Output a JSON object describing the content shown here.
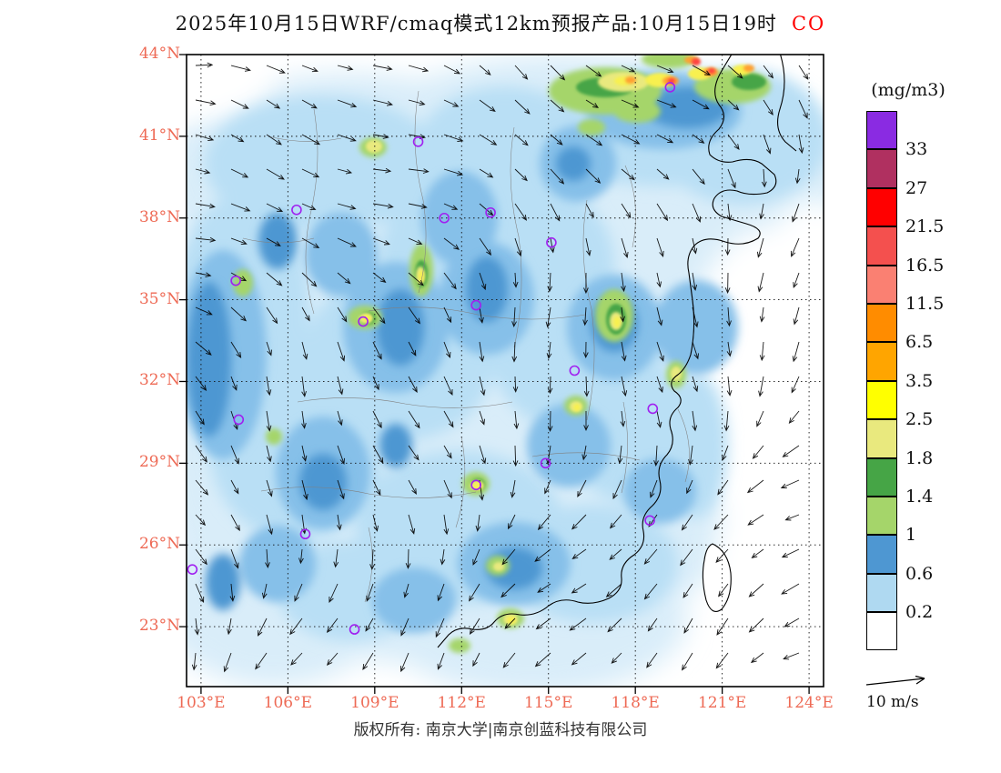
{
  "title": {
    "text": "2025年10月15日WRF/cmaq模式12km预报产品:10月15日19时",
    "species": "CO"
  },
  "axes": {
    "lat_labels": [
      "44°N",
      "41°N",
      "38°N",
      "35°N",
      "32°N",
      "29°N",
      "26°N",
      "23°N"
    ],
    "lon_labels": [
      "103°E",
      "106°E",
      "109°E",
      "112°E",
      "115°E",
      "118°E",
      "121°E",
      "124°E"
    ],
    "label_color": "#ee6a55"
  },
  "colorbar": {
    "title": "(mg/m3)",
    "cells": [
      {
        "color": "#8A2BE2",
        "label": "33"
      },
      {
        "color": "#B03060",
        "label": "27"
      },
      {
        "color": "#FF0000",
        "label": "21.5"
      },
      {
        "color": "#F4504E",
        "label": "16.5"
      },
      {
        "color": "#FA8072",
        "label": "11.5"
      },
      {
        "color": "#FF8C00",
        "label": "6.5"
      },
      {
        "color": "#FFA500",
        "label": "3.5"
      },
      {
        "color": "#FFFF00",
        "label": "2.5"
      },
      {
        "color": "#E9E97E",
        "label": "1.8"
      },
      {
        "color": "#46A546",
        "label": "1.4"
      },
      {
        "color": "#A5D56A",
        "label": "1"
      },
      {
        "color": "#4E97D2",
        "label": "0.6"
      },
      {
        "color": "#AFD9F1",
        "label": "0.2"
      },
      {
        "color": "#FFFFFF",
        "label": ""
      }
    ]
  },
  "wind_legend": {
    "label": "10 m/s"
  },
  "footer": {
    "text": "版权所有: 南京大学|南京创蓝科技有限公司"
  },
  "chart_data": {
    "type": "heatmap",
    "variable": "CO",
    "units": "mg/m3",
    "model": "WRF/cmaq 12km forecast product",
    "run_date": "2025年10月15日",
    "valid_time": "10月15日19时",
    "lon_range": [
      102.5,
      124.5
    ],
    "lat_range": [
      20.8,
      44
    ],
    "lon_ticks": [
      103,
      106,
      109,
      112,
      115,
      118,
      121,
      124
    ],
    "lat_ticks": [
      44,
      41,
      38,
      35,
      32,
      29,
      26,
      23
    ],
    "levels_mg_m3": [
      0.2,
      0.6,
      1,
      1.4,
      1.8,
      2.5,
      3.5,
      6.5,
      11.5,
      16.5,
      21.5,
      27,
      33
    ],
    "level_colors_low_to_high": [
      "#FFFFFF",
      "#AFD9F1",
      "#4E97D2",
      "#A5D56A",
      "#46A546",
      "#E9E97E",
      "#FFFF00",
      "#FFA500",
      "#FF8C00",
      "#FA8072",
      "#F4504E",
      "#FF0000",
      "#B03060",
      "#8A2BE2"
    ],
    "wind_reference_ms": 10,
    "background_field": "CO mostly 0.2-1 mg/m3 (pale blue) over land; below 0.2 (white) over southeast ocean; deeper blue (0.6-1.4) bands along western edge and scattered patches",
    "hotspots": [
      {
        "lon": 119.3,
        "lat": 43.6,
        "peak": 21.5,
        "desc": "strong NE plume band with orange/red cores"
      },
      {
        "lon": 117.5,
        "lat": 43.0,
        "peak": 3.5
      },
      {
        "lon": 109.0,
        "lat": 40.7,
        "peak": 2.5
      },
      {
        "lon": 110.6,
        "lat": 36.2,
        "peak": 2.5
      },
      {
        "lon": 108.7,
        "lat": 34.3,
        "peak": 2.5
      },
      {
        "lon": 117.3,
        "lat": 34.4,
        "peak": 3.5
      },
      {
        "lon": 116.0,
        "lat": 31.1,
        "peak": 2.5
      },
      {
        "lon": 119.4,
        "lat": 32.3,
        "peak": 2.5
      },
      {
        "lon": 112.5,
        "lat": 28.2,
        "peak": 2.5
      },
      {
        "lon": 113.3,
        "lat": 23.2,
        "peak": 2.5
      },
      {
        "lon": 104.4,
        "lat": 35.6,
        "peak": 1.8
      },
      {
        "lon": 113.7,
        "lat": 25.2,
        "peak": 1.8
      }
    ],
    "station_markers_lon_lat": [
      [
        119.2,
        42.8
      ],
      [
        110.5,
        40.8
      ],
      [
        106.3,
        38.3
      ],
      [
        111.4,
        38.0
      ],
      [
        113.0,
        38.2
      ],
      [
        115.1,
        37.1
      ],
      [
        104.2,
        35.7
      ],
      [
        108.6,
        34.2
      ],
      [
        112.5,
        34.8
      ],
      [
        115.9,
        32.4
      ],
      [
        118.6,
        31.0
      ],
      [
        104.3,
        30.6
      ],
      [
        114.9,
        29.0
      ],
      [
        106.6,
        26.4
      ],
      [
        118.5,
        26.9
      ],
      [
        108.3,
        22.9
      ],
      [
        102.7,
        25.1
      ],
      [
        112.5,
        28.2
      ]
    ]
  }
}
